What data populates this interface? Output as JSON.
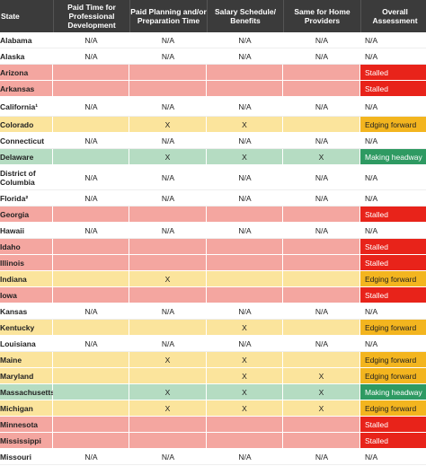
{
  "header": {
    "state": "State",
    "col1": "Paid Time for Professional Development",
    "col2": "Paid Planning and/or Preparation Time",
    "col3": "Salary Schedule/ Benefits",
    "col4": "Same for Home Providers",
    "overall": "Overall Assessment"
  },
  "colors": {
    "stalled": "#e8231a",
    "edging_forward": "#f3b51f",
    "making_headway": "#2e9a62",
    "stalled_row": "#f4a6a0",
    "edging_row": "#fbe49c",
    "headway_row": "#b5dcc2",
    "header_bg": "#3b3b3b"
  },
  "rows": [
    {
      "state": "Alabama",
      "c1": "N/A",
      "c2": "N/A",
      "c3": "N/A",
      "c4": "N/A",
      "overall": "N/A",
      "status": "white"
    },
    {
      "state": "Alaska",
      "c1": "N/A",
      "c2": "N/A",
      "c3": "N/A",
      "c4": "N/A",
      "overall": "N/A",
      "status": "white"
    },
    {
      "state": "Arizona",
      "c1": "",
      "c2": "",
      "c3": "",
      "c4": "",
      "overall": "Stalled",
      "status": "red"
    },
    {
      "state": "Arkansas",
      "c1": "",
      "c2": "",
      "c3": "",
      "c4": "",
      "overall": "Stalled",
      "status": "red"
    },
    {
      "state": "California¹",
      "c1": "N/A",
      "c2": "N/A",
      "c3": "N/A",
      "c4": "N/A",
      "overall": "N/A",
      "status": "white"
    },
    {
      "state": "Colorado",
      "c1": "",
      "c2": "X",
      "c3": "X",
      "c4": "",
      "overall": "Edging forward",
      "status": "yellow"
    },
    {
      "state": "Connecticut",
      "c1": "N/A",
      "c2": "N/A",
      "c3": "N/A",
      "c4": "N/A",
      "overall": "N/A",
      "status": "white"
    },
    {
      "state": "Delaware",
      "c1": "",
      "c2": "X",
      "c3": "X",
      "c4": "X",
      "overall": "Making headway",
      "status": "green"
    },
    {
      "state": "District of Columbia",
      "c1": "N/A",
      "c2": "N/A",
      "c3": "N/A",
      "c4": "N/A",
      "overall": "N/A",
      "status": "white"
    },
    {
      "state": "Florida²",
      "c1": "N/A",
      "c2": "N/A",
      "c3": "N/A",
      "c4": "N/A",
      "overall": "N/A",
      "status": "white"
    },
    {
      "state": "Georgia",
      "c1": "",
      "c2": "",
      "c3": "",
      "c4": "",
      "overall": "Stalled",
      "status": "red"
    },
    {
      "state": "Hawaii",
      "c1": "N/A",
      "c2": "N/A",
      "c3": "N/A",
      "c4": "N/A",
      "overall": "N/A",
      "status": "white"
    },
    {
      "state": "Idaho",
      "c1": "",
      "c2": "",
      "c3": "",
      "c4": "",
      "overall": "Stalled",
      "status": "red"
    },
    {
      "state": "Illinois",
      "c1": "",
      "c2": "",
      "c3": "",
      "c4": "",
      "overall": "Stalled",
      "status": "red"
    },
    {
      "state": "Indiana",
      "c1": "",
      "c2": "X",
      "c3": "",
      "c4": "",
      "overall": "Edging forward",
      "status": "yellow"
    },
    {
      "state": "Iowa",
      "c1": "",
      "c2": "",
      "c3": "",
      "c4": "",
      "overall": "Stalled",
      "status": "red"
    },
    {
      "state": "Kansas",
      "c1": "N/A",
      "c2": "N/A",
      "c3": "N/A",
      "c4": "N/A",
      "overall": "N/A",
      "status": "white"
    },
    {
      "state": "Kentucky",
      "c1": "",
      "c2": "",
      "c3": "X",
      "c4": "",
      "overall": "Edging forward",
      "status": "yellow"
    },
    {
      "state": "Louisiana",
      "c1": "N/A",
      "c2": "N/A",
      "c3": "N/A",
      "c4": "N/A",
      "overall": "N/A",
      "status": "white"
    },
    {
      "state": "Maine",
      "c1": "",
      "c2": "X",
      "c3": "X",
      "c4": "",
      "overall": "Edging forward",
      "status": "yellow"
    },
    {
      "state": "Maryland",
      "c1": "",
      "c2": "",
      "c3": "X",
      "c4": "X",
      "overall": "Edging forward",
      "status": "yellow"
    },
    {
      "state": "Massachusetts",
      "c1": "",
      "c2": "X",
      "c3": "X",
      "c4": "X",
      "overall": "Making headway",
      "status": "green"
    },
    {
      "state": "Michigan",
      "c1": "",
      "c2": "X",
      "c3": "X",
      "c4": "X",
      "overall": "Edging forward",
      "status": "yellow"
    },
    {
      "state": "Minnesota",
      "c1": "",
      "c2": "",
      "c3": "",
      "c4": "",
      "overall": "Stalled",
      "status": "red"
    },
    {
      "state": "Mississippi",
      "c1": "",
      "c2": "",
      "c3": "",
      "c4": "",
      "overall": "Stalled",
      "status": "red"
    },
    {
      "state": "Missouri",
      "c1": "N/A",
      "c2": "N/A",
      "c3": "N/A",
      "c4": "N/A",
      "overall": "N/A",
      "status": "white"
    }
  ]
}
